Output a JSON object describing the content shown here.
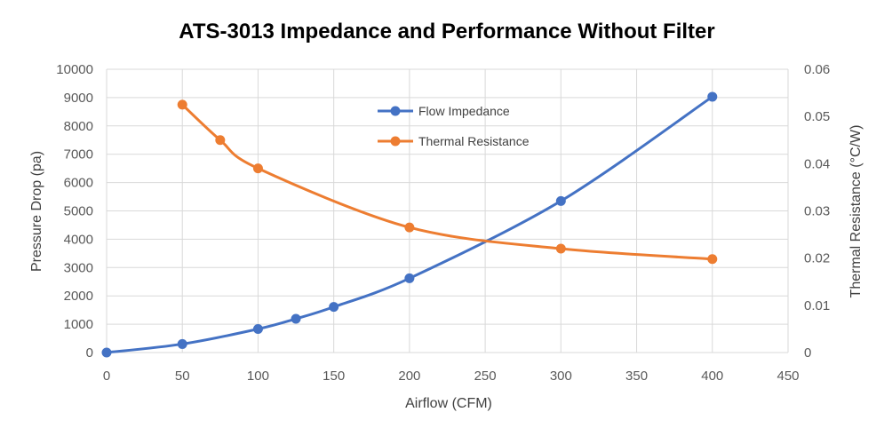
{
  "chart_data": {
    "type": "line",
    "title": "ATS-3013 Impedance and Performance Without Filter",
    "xlabel": "Airflow (CFM)",
    "ylabel": "Pressure Drop (pa)",
    "y2label": "Thermal Resistance (°C/W)",
    "xlim": [
      0,
      450
    ],
    "ylim": [
      0,
      10000
    ],
    "y2lim": [
      0,
      0.06
    ],
    "x_ticks": [
      "0",
      "50",
      "100",
      "150",
      "200",
      "250",
      "300",
      "350",
      "400",
      "450"
    ],
    "y_ticks": [
      "0",
      "1000",
      "2000",
      "3000",
      "4000",
      "5000",
      "6000",
      "7000",
      "8000",
      "9000",
      "10000"
    ],
    "y2_ticks": [
      "0",
      "0.01",
      "0.02",
      "0.03",
      "0.04",
      "0.05",
      "0.06"
    ],
    "grid": true,
    "legend_position": "top-center",
    "series": [
      {
        "name": "Flow Impedance",
        "axis": "left",
        "color": "#4472C4",
        "x": [
          0,
          50,
          100,
          125,
          150,
          200,
          300,
          400
        ],
        "y": [
          0,
          300,
          830,
          1190,
          1610,
          2620,
          5350,
          9030
        ]
      },
      {
        "name": "Thermal Resistance",
        "axis": "right",
        "color": "#ED7D31",
        "x": [
          50,
          75,
          100,
          200,
          300,
          400
        ],
        "y": [
          0.0525,
          0.045,
          0.039,
          0.0265,
          0.022,
          0.0198
        ]
      }
    ]
  }
}
